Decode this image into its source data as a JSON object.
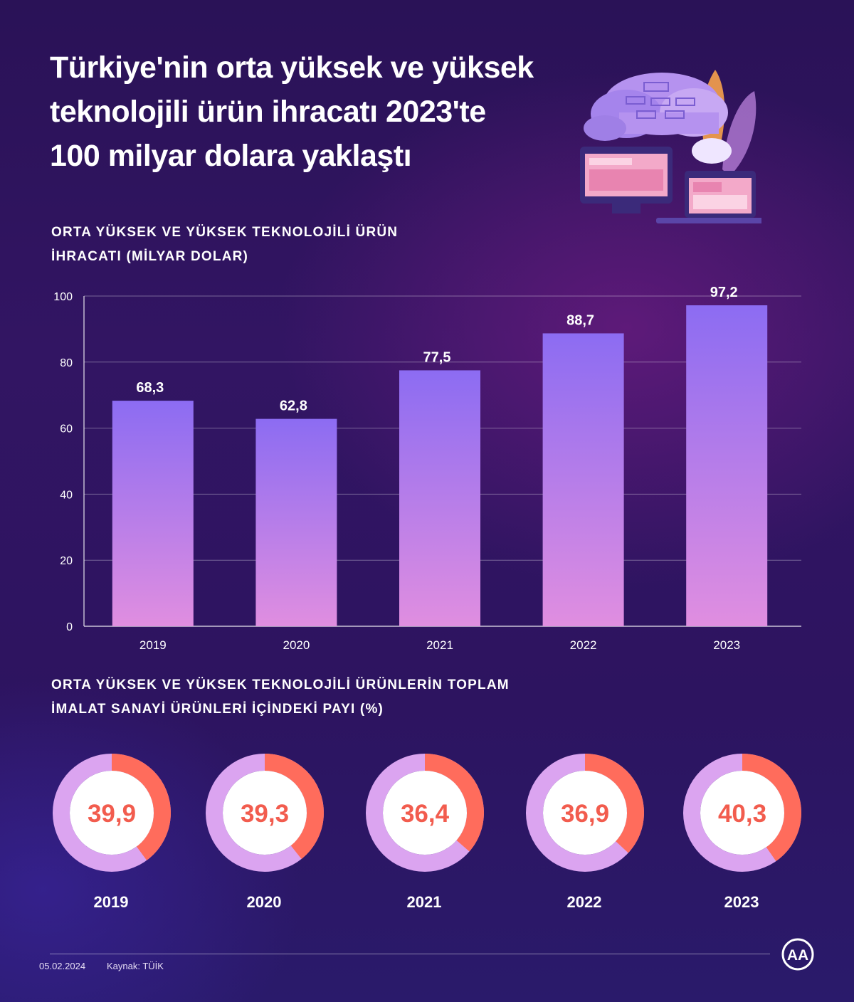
{
  "title": {
    "line1": "Türkiye'nin orta yüksek ve yüksek",
    "line2": "teknolojili ürün ihracatı 2023'te",
    "line3": "100 milyar dolara yaklaştı"
  },
  "section1": {
    "line1": "ORTA YÜKSEK VE YÜKSEK TEKNOLOJİLİ ÜRÜN",
    "line2": "İHRACATI (MİLYAR DOLAR)"
  },
  "section2": {
    "line1": "ORTA YÜKSEK VE YÜKSEK TEKNOLOJİLİ ÜRÜNLERİN TOPLAM",
    "line2": "İMALAT SANAYİ ÜRÜNLERİ İÇİNDEKİ PAYI (%)"
  },
  "chart_data": [
    {
      "type": "bar",
      "title": "ORTA YÜKSEK VE YÜKSEK TEKNOLOJİLİ ÜRÜN İHRACATI (MİLYAR DOLAR)",
      "categories": [
        "2019",
        "2020",
        "2021",
        "2022",
        "2023"
      ],
      "values": [
        68.3,
        62.8,
        77.5,
        88.7,
        97.2
      ],
      "data_labels": [
        "68,3",
        "62,8",
        "77,5",
        "88,7",
        "97,2"
      ],
      "yticks": [
        "0",
        "20",
        "40",
        "60",
        "80",
        "100"
      ],
      "ylim": [
        0,
        100
      ],
      "xlabel": "",
      "ylabel": "",
      "grid": true
    },
    {
      "type": "pie",
      "title": "ORTA YÜKSEK VE YÜKSEK TEKNOLOJİLİ ÜRÜNLERİN TOPLAM İMALAT SANAYİ ÜRÜNLERİ İÇİNDEKİ PAYI (%)",
      "categories": [
        "2019",
        "2020",
        "2021",
        "2022",
        "2023"
      ],
      "values": [
        39.9,
        39.3,
        36.4,
        36.9,
        40.3
      ],
      "data_labels": [
        "39,9",
        "39,3",
        "36,4",
        "36,9",
        "40,3"
      ]
    }
  ],
  "colors": {
    "bar_top": "#8c6cf2",
    "bar_bottom": "#e08ee0",
    "ring_share": "#ff6c5c",
    "ring_rest": "#dba4f0",
    "donut_value": "#f25c4e"
  },
  "footer": {
    "date": "05.02.2024",
    "source": "Kaynak: TÜİK",
    "logo_text": "AA"
  }
}
